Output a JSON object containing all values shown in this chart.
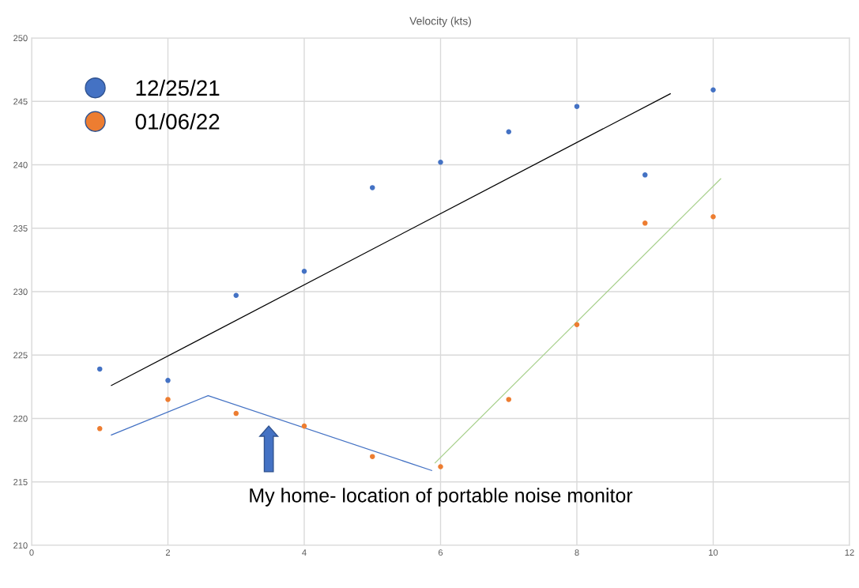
{
  "chart_data": {
    "type": "scatter",
    "title": "Velocity (kts)",
    "x": [
      1,
      2,
      3,
      4,
      5,
      6,
      7,
      8,
      9,
      10
    ],
    "series": [
      {
        "name": "12/25/21",
        "color": "#4472c4",
        "values": [
          223.9,
          223.0,
          229.7,
          231.6,
          238.2,
          240.2,
          242.6,
          244.6,
          239.2,
          245.9
        ]
      },
      {
        "name": "01/06/22",
        "color": "#ed7d31",
        "values": [
          219.2,
          221.5,
          220.4,
          219.4,
          217.0,
          216.2,
          221.5,
          227.4,
          235.4,
          235.9
        ]
      },
      {
        "type": "line",
        "marker": "none",
        "color": "#000000",
        "x": [
          1.17,
          9.37
        ],
        "values": [
          222.6,
          245.6
        ]
      },
      {
        "type": "line",
        "marker": "none",
        "color": "#4472c4",
        "x": [
          1.17,
          2.59,
          5.87
        ],
        "values": [
          218.7,
          221.8,
          215.9
        ]
      },
      {
        "type": "line",
        "marker": "none",
        "color": "#a9d18e",
        "x": [
          5.92,
          10.11
        ],
        "values": [
          216.5,
          238.9
        ]
      }
    ],
    "annotations": [
      "My home- location of portable noise monitor"
    ],
    "xlim": [
      0,
      12
    ],
    "xticks": [
      0,
      2,
      4,
      6,
      8,
      10,
      12
    ],
    "ylim": [
      210,
      250
    ],
    "yticks": [
      210,
      215,
      220,
      225,
      230,
      235,
      240,
      245,
      250
    ],
    "grid": true,
    "legend": "top left",
    "marker": "circle"
  }
}
